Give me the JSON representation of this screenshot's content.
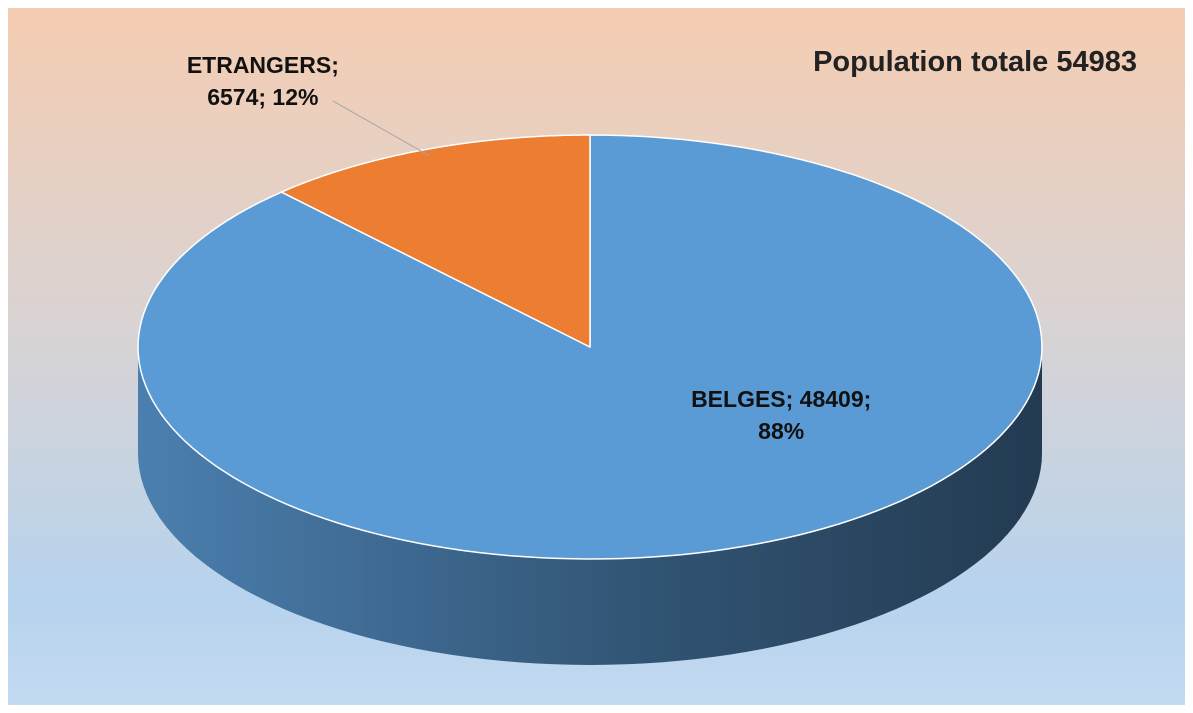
{
  "chart_data": {
    "type": "pie",
    "title": "Population totale 54983",
    "categories": [
      "ETRANGERS",
      "BELGES"
    ],
    "values": [
      6574,
      48409
    ],
    "value_labels": [
      "ETRANGERS; 6574; 12%",
      "BELGES; 48409; 88%"
    ],
    "colors": [
      "#ed7d31",
      "#5b9bd5"
    ]
  }
}
